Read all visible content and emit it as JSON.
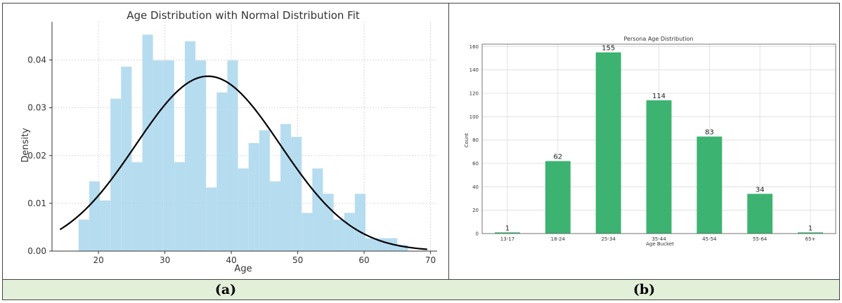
{
  "captions": {
    "left": "(a)",
    "right": "(b)"
  },
  "chart_data": [
    {
      "type": "bar",
      "title": "Age Distribution with Normal Distribution Fit",
      "xlabel": "Age",
      "ylabel": "Density",
      "xlim": [
        13,
        71
      ],
      "ylim": [
        0,
        0.048
      ],
      "xticks": [
        20,
        30,
        40,
        50,
        60,
        70
      ],
      "yticks": [
        0.0,
        0.01,
        0.02,
        0.03,
        0.04
      ],
      "ytick_labels": [
        "0.00",
        "0.01",
        "0.02",
        "0.03",
        "0.04"
      ],
      "grid": true,
      "bar_color": "#aed8ee",
      "curve_color": "#000000",
      "bins": [
        {
          "x0": 17.0,
          "x1": 18.6,
          "value": 0.0066
        },
        {
          "x0": 18.6,
          "x1": 20.2,
          "value": 0.0146
        },
        {
          "x0": 20.2,
          "x1": 21.8,
          "value": 0.0106
        },
        {
          "x0": 21.8,
          "x1": 23.4,
          "value": 0.0319
        },
        {
          "x0": 23.4,
          "x1": 25.0,
          "value": 0.0386
        },
        {
          "x0": 25.0,
          "x1": 26.6,
          "value": 0.0186
        },
        {
          "x0": 26.6,
          "x1": 28.2,
          "value": 0.0453
        },
        {
          "x0": 28.2,
          "x1": 29.8,
          "value": 0.0399
        },
        {
          "x0": 29.8,
          "x1": 31.4,
          "value": 0.0399
        },
        {
          "x0": 31.4,
          "x1": 33.0,
          "value": 0.0186
        },
        {
          "x0": 33.0,
          "x1": 34.6,
          "value": 0.0439
        },
        {
          "x0": 34.6,
          "x1": 36.2,
          "value": 0.0399
        },
        {
          "x0": 36.2,
          "x1": 37.8,
          "value": 0.0133
        },
        {
          "x0": 37.8,
          "x1": 39.4,
          "value": 0.0332
        },
        {
          "x0": 39.4,
          "x1": 41.0,
          "value": 0.0399
        },
        {
          "x0": 41.0,
          "x1": 42.6,
          "value": 0.0173
        },
        {
          "x0": 42.6,
          "x1": 44.2,
          "value": 0.0226
        },
        {
          "x0": 44.2,
          "x1": 45.8,
          "value": 0.0253
        },
        {
          "x0": 45.8,
          "x1": 47.4,
          "value": 0.0146
        },
        {
          "x0": 47.4,
          "x1": 49.0,
          "value": 0.0266
        },
        {
          "x0": 49.0,
          "x1": 50.6,
          "value": 0.0239
        },
        {
          "x0": 50.6,
          "x1": 52.2,
          "value": 0.008
        },
        {
          "x0": 52.2,
          "x1": 53.8,
          "value": 0.0173
        },
        {
          "x0": 53.8,
          "x1": 55.4,
          "value": 0.012
        },
        {
          "x0": 55.4,
          "x1": 57.0,
          "value": 0.0066
        },
        {
          "x0": 57.0,
          "x1": 58.6,
          "value": 0.008
        },
        {
          "x0": 58.6,
          "x1": 60.2,
          "value": 0.012
        },
        {
          "x0": 60.2,
          "x1": 61.8,
          "value": 0.0027
        },
        {
          "x0": 61.8,
          "x1": 63.4,
          "value": 0.0027
        },
        {
          "x0": 63.4,
          "x1": 65.0,
          "value": 0.0027
        },
        {
          "x0": 65.0,
          "x1": 66.6,
          "value": 0.0013
        }
      ],
      "normal_fit": {
        "mean": 36.5,
        "std": 10.9,
        "x_range": [
          14.2,
          69.5
        ]
      }
    },
    {
      "type": "bar",
      "title": "Persona Age Distribution",
      "xlabel": "Age Bucket",
      "ylabel": "Count",
      "categories": [
        "13-17",
        "18-24",
        "25-34",
        "35-44",
        "45-54",
        "55-64",
        "65+"
      ],
      "values": [
        1,
        62,
        155,
        114,
        83,
        34,
        1
      ],
      "ylim": [
        0,
        162
      ],
      "yticks": [
        0,
        20,
        40,
        60,
        80,
        100,
        120,
        140,
        160
      ],
      "grid": true,
      "bar_color": "#3cb371"
    }
  ]
}
